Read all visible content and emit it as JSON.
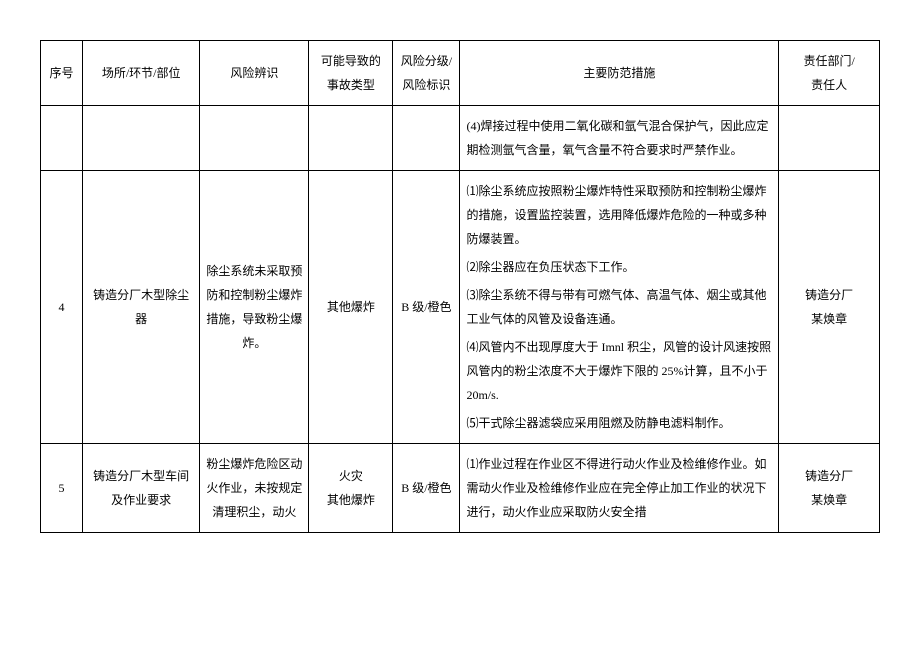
{
  "headers": {
    "seq": "序号",
    "place": "场所/环节/部位",
    "risk": "风险辨识",
    "incident_line1": "可能导致的",
    "incident_line2": "事故类型",
    "level_line1": "风险分级/",
    "level_line2": "风险标识",
    "measure": "主要防范措施",
    "responsible_line1": "责任部门/",
    "responsible_line2": "责任人"
  },
  "rows": [
    {
      "seq": "",
      "place": "",
      "risk": "",
      "incident": "",
      "level": "",
      "measures": [
        "(4)焊接过程中使用二氧化碳和氩气混合保护气，因此应定期检测氩气含量，氧气含量不符合要求时严禁作业。"
      ],
      "responsible": ""
    },
    {
      "seq": "4",
      "place": "铸造分厂木型除尘器",
      "risk": "除尘系统未采取预防和控制粉尘爆炸措施，导致粉尘爆炸。",
      "incident": "其他爆炸",
      "level": "B 级/橙色",
      "measures": [
        "⑴除尘系统应按照粉尘爆炸特性采取预防和控制粉尘爆炸的措施，设置监控装置，选用降低爆炸危险的一种或多种防爆装置。",
        "⑵除尘器应在负压状态下工作。",
        "⑶除尘系统不得与带有可燃气体、高温气体、烟尘或其他工业气体的风管及设备连通。",
        "⑷风管内不出现厚度大于 Imnl 积尘，风管的设计风速按照风管内的粉尘浓度不大于爆炸下限的 25%计算，且不小于 20m/s.",
        "⑸干式除尘器滤袋应采用阻燃及防静电滤料制作。"
      ],
      "responsible_line1": "铸造分厂",
      "responsible_line2": "某焕章"
    },
    {
      "seq": "5",
      "place": "铸造分厂木型车间及作业要求",
      "risk": "粉尘爆炸危险区动火作业，未按规定清理积尘，动火",
      "incident_line1": "火灾",
      "incident_line2": "其他爆炸",
      "level": "B 级/橙色",
      "measures": [
        "⑴作业过程在作业区不得进行动火作业及检维修作业。如需动火作业及检维修作业应在完全停止加工作业的状况下进行，动火作业应采取防火安全措"
      ],
      "responsible_line1": "铸造分厂",
      "responsible_line2": "某焕章"
    }
  ]
}
